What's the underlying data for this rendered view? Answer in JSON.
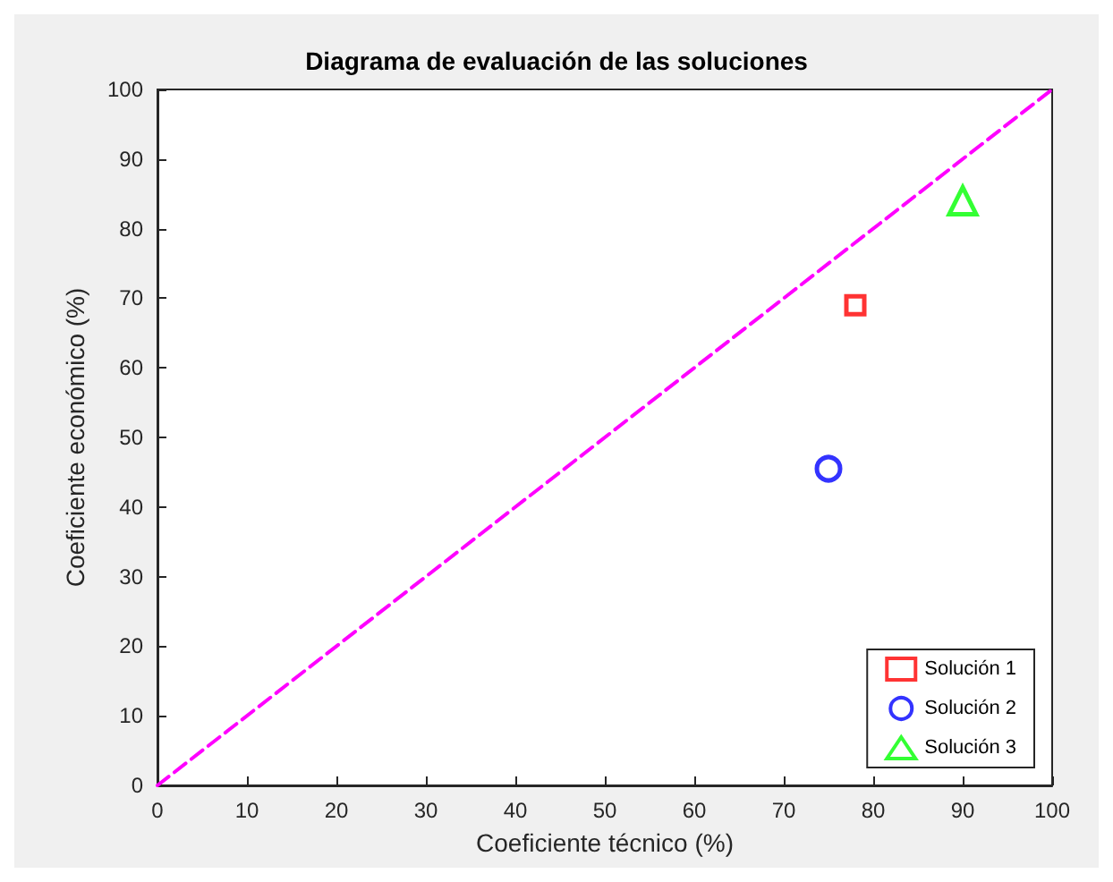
{
  "chart_data": {
    "type": "scatter",
    "title": "Diagrama de evaluación de las soluciones",
    "xlabel": "Coeficiente técnico (%)",
    "ylabel": "Coeficiente económico (%)",
    "xlim": [
      0,
      100
    ],
    "ylim": [
      0,
      100
    ],
    "xticks": [
      0,
      10,
      20,
      30,
      40,
      50,
      60,
      70,
      80,
      90,
      100
    ],
    "yticks": [
      0,
      10,
      20,
      30,
      40,
      50,
      60,
      70,
      80,
      90,
      100
    ],
    "grid": false,
    "legend": "bottom right",
    "series": [
      {
        "type": "line",
        "x": [
          0,
          100
        ],
        "values": [
          0,
          100
        ],
        "color": "#ff00ff",
        "line_style": "dashed",
        "marker": "none"
      },
      {
        "name": "Solución 1",
        "x": [
          78
        ],
        "values": [
          69
        ],
        "color": "#ff0000",
        "marker": "square"
      },
      {
        "name": "Solución 2",
        "x": [
          75
        ],
        "values": [
          45.5
        ],
        "color": "#0000ff",
        "marker": "circle"
      },
      {
        "name": "Solución 3",
        "x": [
          90
        ],
        "values": [
          84
        ],
        "color": "#00ff00",
        "marker": "triangle"
      }
    ]
  }
}
